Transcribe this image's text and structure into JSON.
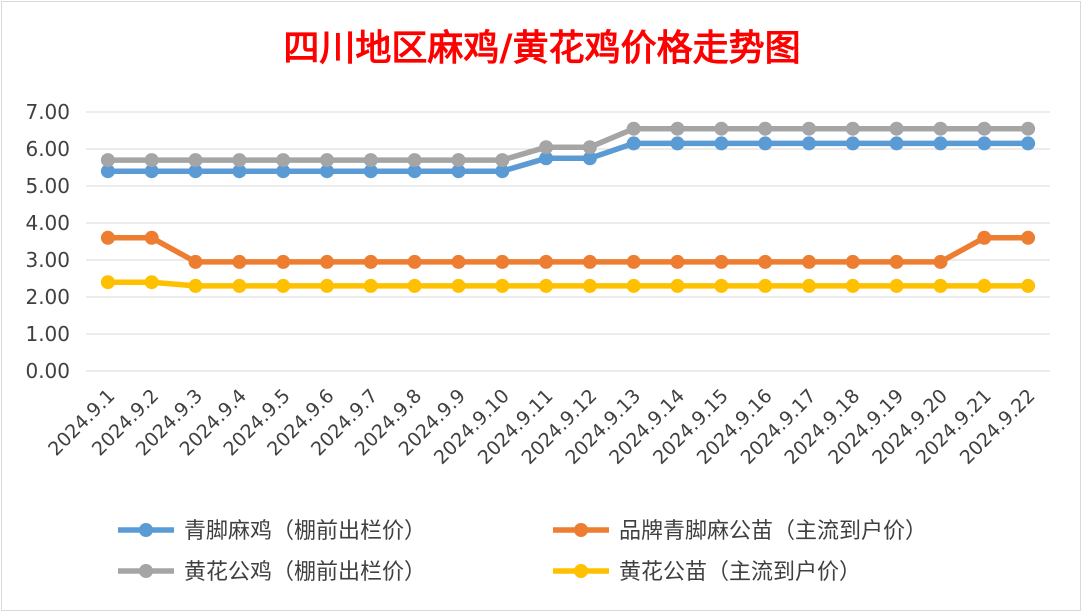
{
  "chart_data": {
    "type": "line",
    "title": "四川地区麻鸡/黄花鸡价格走势图",
    "title_color": "#ff0000",
    "xlabel": "",
    "ylabel": "",
    "ylim": [
      0,
      7
    ],
    "y_ticks": [
      "0.00",
      "1.00",
      "2.00",
      "3.00",
      "4.00",
      "5.00",
      "6.00",
      "7.00"
    ],
    "grid": true,
    "legend_position": "bottom",
    "categories": [
      "2024.9.1",
      "2024.9.2",
      "2024.9.3",
      "2024.9.4",
      "2024.9.5",
      "2024.9.6",
      "2024.9.7",
      "2024.9.8",
      "2024.9.9",
      "2024.9.10",
      "2024.9.11",
      "2024.9.12",
      "2024.9.13",
      "2024.9.14",
      "2024.9.15",
      "2024.9.16",
      "2024.9.17",
      "2024.9.18",
      "2024.9.19",
      "2024.9.20",
      "2024.9.21",
      "2024.9.22"
    ],
    "series": [
      {
        "name": "青脚麻鸡（棚前出栏价）",
        "color": "#5b9bd5",
        "values": [
          5.4,
          5.4,
          5.4,
          5.4,
          5.4,
          5.4,
          5.4,
          5.4,
          5.4,
          5.4,
          5.75,
          5.75,
          6.15,
          6.15,
          6.15,
          6.15,
          6.15,
          6.15,
          6.15,
          6.15,
          6.15,
          6.15
        ]
      },
      {
        "name": "品牌青脚麻公苗（主流到户价）",
        "color": "#ed7d31",
        "values": [
          3.6,
          3.6,
          2.95,
          2.95,
          2.95,
          2.95,
          2.95,
          2.95,
          2.95,
          2.95,
          2.95,
          2.95,
          2.95,
          2.95,
          2.95,
          2.95,
          2.95,
          2.95,
          2.95,
          2.95,
          3.6,
          3.6
        ]
      },
      {
        "name": "黄花公鸡（棚前出栏价）",
        "color": "#a5a5a5",
        "values": [
          5.7,
          5.7,
          5.7,
          5.7,
          5.7,
          5.7,
          5.7,
          5.7,
          5.7,
          5.7,
          6.05,
          6.05,
          6.55,
          6.55,
          6.55,
          6.55,
          6.55,
          6.55,
          6.55,
          6.55,
          6.55,
          6.55
        ]
      },
      {
        "name": "黄花公苗（主流到户价）",
        "color": "#ffc000",
        "values": [
          2.4,
          2.4,
          2.3,
          2.3,
          2.3,
          2.3,
          2.3,
          2.3,
          2.3,
          2.3,
          2.3,
          2.3,
          2.3,
          2.3,
          2.3,
          2.3,
          2.3,
          2.3,
          2.3,
          2.3,
          2.3,
          2.3
        ]
      }
    ]
  }
}
